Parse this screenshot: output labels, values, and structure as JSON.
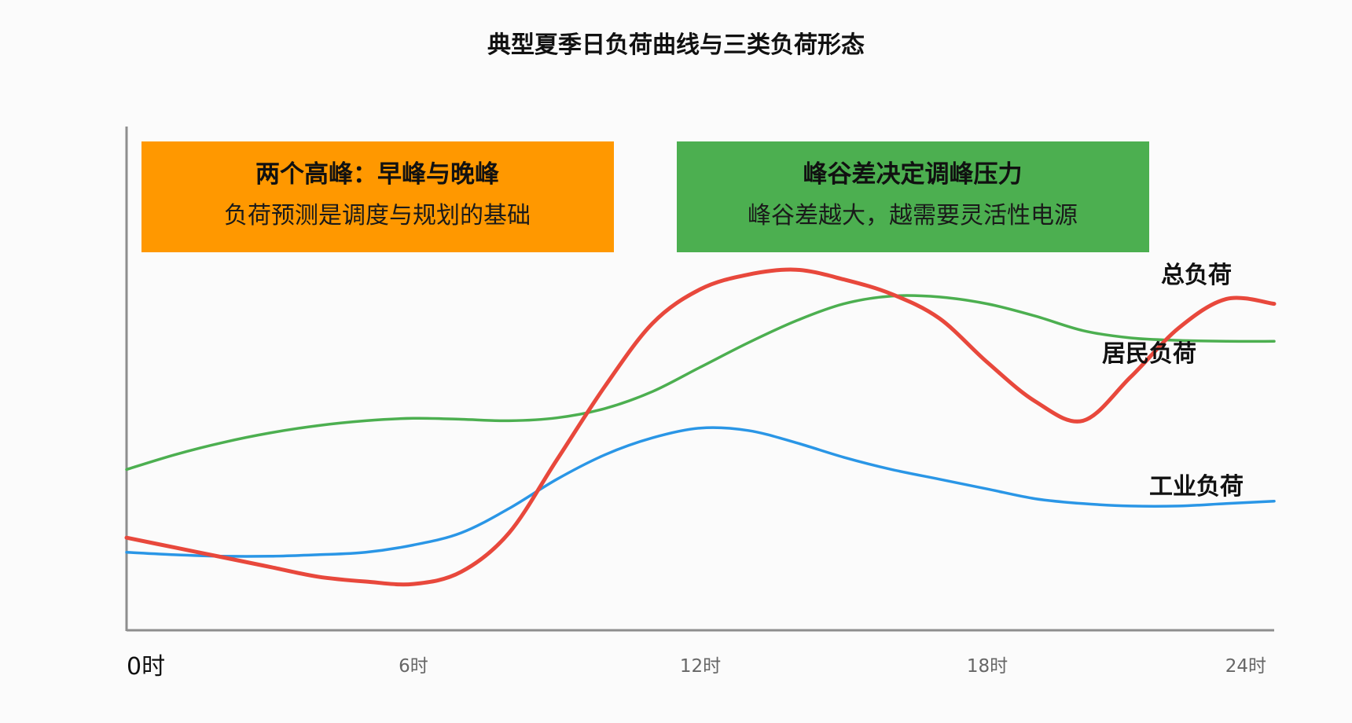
{
  "chart_data": {
    "type": "line",
    "title": "典型夏季日负荷曲线与三类负荷形态",
    "xlabel": "",
    "ylabel": "",
    "x": [
      0,
      1,
      2,
      3,
      4,
      5,
      6,
      7,
      8,
      9,
      10,
      11,
      12,
      13,
      14,
      15,
      16,
      17,
      18,
      19,
      20,
      21,
      22,
      23,
      24
    ],
    "xlim": [
      0,
      24
    ],
    "ylim": [
      0,
      100
    ],
    "x_ticks": [
      {
        "value": 0,
        "label": "0时"
      },
      {
        "value": 6,
        "label": "6时"
      },
      {
        "value": 12,
        "label": "12时"
      },
      {
        "value": 18,
        "label": "18时"
      },
      {
        "value": 24,
        "label": "24时"
      }
    ],
    "grid": false,
    "series": [
      {
        "name": "总负荷",
        "color": "#e8483c",
        "values": [
          19,
          17,
          15,
          13,
          11,
          10,
          9.5,
          12,
          20,
          35,
          50,
          63,
          70,
          73,
          74,
          72,
          69,
          64,
          55,
          47,
          43,
          52,
          62,
          68,
          67
        ]
      },
      {
        "name": "居民负荷",
        "color": "#4caf50",
        "values": [
          33,
          36,
          38.5,
          40.5,
          42,
          43,
          43.5,
          43.3,
          43,
          43.6,
          45.5,
          49,
          54,
          59,
          63.5,
          67,
          68.6,
          68.4,
          67,
          64.5,
          61.5,
          60,
          59.5,
          59.3,
          59.3
        ]
      },
      {
        "name": "工业负荷",
        "color": "#2a96e6",
        "values": [
          16,
          15.5,
          15.2,
          15.2,
          15.5,
          16,
          17.5,
          20,
          25,
          31,
          36,
          39.5,
          41.5,
          41,
          38.5,
          35.5,
          33,
          31,
          29,
          27,
          26,
          25.5,
          25.5,
          26,
          26.5
        ]
      }
    ],
    "annotations": [
      {
        "title": "两个高峰：早峰与晚峰",
        "text": "负荷预测是调度与规划的基础",
        "color": "#ff9800"
      },
      {
        "title": "峰谷差决定调峰压力",
        "text": "峰谷差越大，越需要灵活性电源",
        "color": "#4caf50"
      }
    ]
  }
}
